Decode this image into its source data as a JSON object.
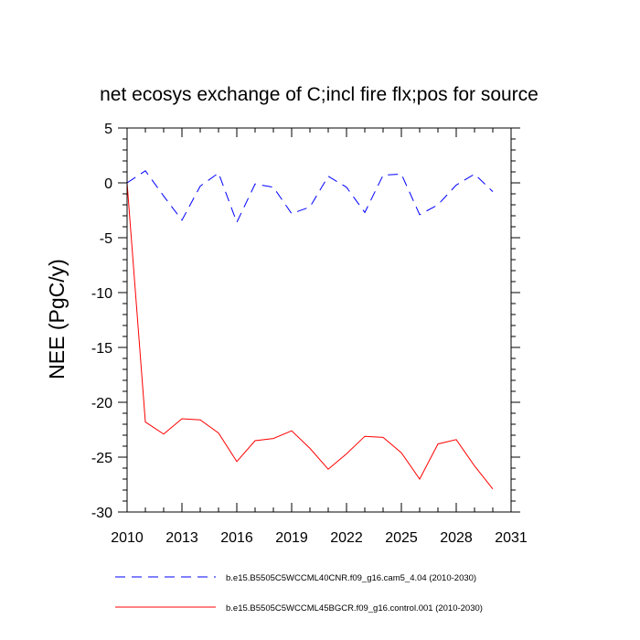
{
  "chart_data": {
    "type": "line",
    "title": "net ecosys exchange of C;incl fire flx;pos for source",
    "xlabel": "",
    "ylabel": "NEE  (PgC/y)",
    "xlim": [
      2010,
      2031
    ],
    "ylim": [
      -30,
      5
    ],
    "xticks": [
      2010,
      2013,
      2016,
      2019,
      2022,
      2025,
      2028,
      2031
    ],
    "xtick_labels": [
      "2010",
      "2013",
      "2016",
      "2019",
      "2022",
      "2025",
      "2028",
      "2031"
    ],
    "yticks": [
      5,
      0,
      -5,
      -10,
      -15,
      -20,
      -25,
      -30
    ],
    "ytick_labels": [
      "5",
      "0",
      "-5",
      "-10",
      "-15",
      "-20",
      "-25",
      "-30"
    ],
    "legend_position": "bottom",
    "series": [
      {
        "name": "b.e15.B5505C5WCCML40CNR.f09_g16.cam5_4.04 (2010-2030)",
        "color": "#0000ff",
        "style": "dashed",
        "x": [
          2010,
          2011,
          2012,
          2013,
          2014,
          2015,
          2016,
          2017,
          2018,
          2019,
          2020,
          2021,
          2022,
          2023,
          2024,
          2025,
          2026,
          2027,
          2028,
          2029,
          2030
        ],
        "values": [
          0.0,
          1.1,
          -1.2,
          -3.4,
          -0.3,
          0.9,
          -3.6,
          -0.1,
          -0.4,
          -2.8,
          -2.2,
          0.6,
          -0.4,
          -2.7,
          0.7,
          0.8,
          -2.9,
          -2.0,
          -0.2,
          0.8,
          -0.8
        ]
      },
      {
        "name": "b.e15.B5505C5WCCML45BGCR.f09_g16.control.001 (2010-2030)",
        "color": "#ff0000",
        "style": "solid",
        "x": [
          2010,
          2011,
          2012,
          2013,
          2014,
          2015,
          2016,
          2017,
          2018,
          2019,
          2020,
          2021,
          2022,
          2023,
          2024,
          2025,
          2026,
          2027,
          2028,
          2029,
          2030
        ],
        "values": [
          0.0,
          -21.8,
          -22.9,
          -21.5,
          -21.6,
          -22.8,
          -25.4,
          -23.5,
          -23.3,
          -22.6,
          -24.2,
          -26.1,
          -24.7,
          -23.1,
          -23.2,
          -24.6,
          -27.0,
          -23.8,
          -23.4,
          -25.8,
          -27.9
        ]
      }
    ]
  }
}
